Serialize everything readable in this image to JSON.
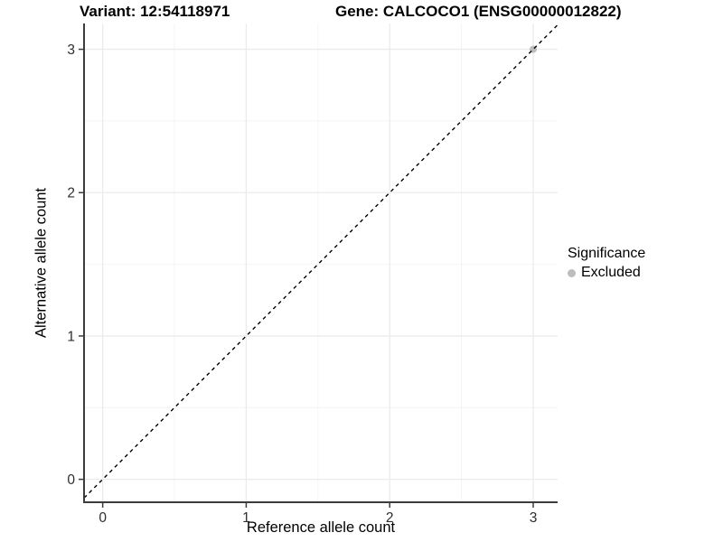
{
  "titles": {
    "variant": "Variant: 12:54118971",
    "gene": "Gene: CALCOCO1 (ENSG00000012822)"
  },
  "chart_data": {
    "type": "scatter",
    "xlabel": "Reference allele count",
    "ylabel": "Alternative allele count",
    "x_ticks": [
      0,
      1,
      2,
      3
    ],
    "y_ticks": [
      0,
      1,
      2,
      3
    ],
    "x_minor_ticks": [
      0.5,
      1.5,
      2.5
    ],
    "y_minor_ticks": [
      0.5,
      1.5,
      2.5
    ],
    "xlim": [
      -0.13,
      3.17
    ],
    "ylim": [
      -0.16,
      3.18
    ],
    "grid": true,
    "points": [
      {
        "x": 3,
        "y": 3,
        "significance": "Excluded",
        "color": "#bdbdbd"
      }
    ],
    "identity_line": {
      "equation": "y = x",
      "style": "dashed",
      "color": "#000000"
    },
    "legend": {
      "position": "right",
      "title": "Significance",
      "items": [
        {
          "label": "Excluded",
          "color": "#bdbdbd"
        }
      ]
    }
  },
  "colors": {
    "background": "#ffffff",
    "grid_major": "#ebebeb",
    "grid_minor": "#f4f4f4",
    "axis_line": "#3c3c3c",
    "tick_label": "#2e2e2e"
  }
}
